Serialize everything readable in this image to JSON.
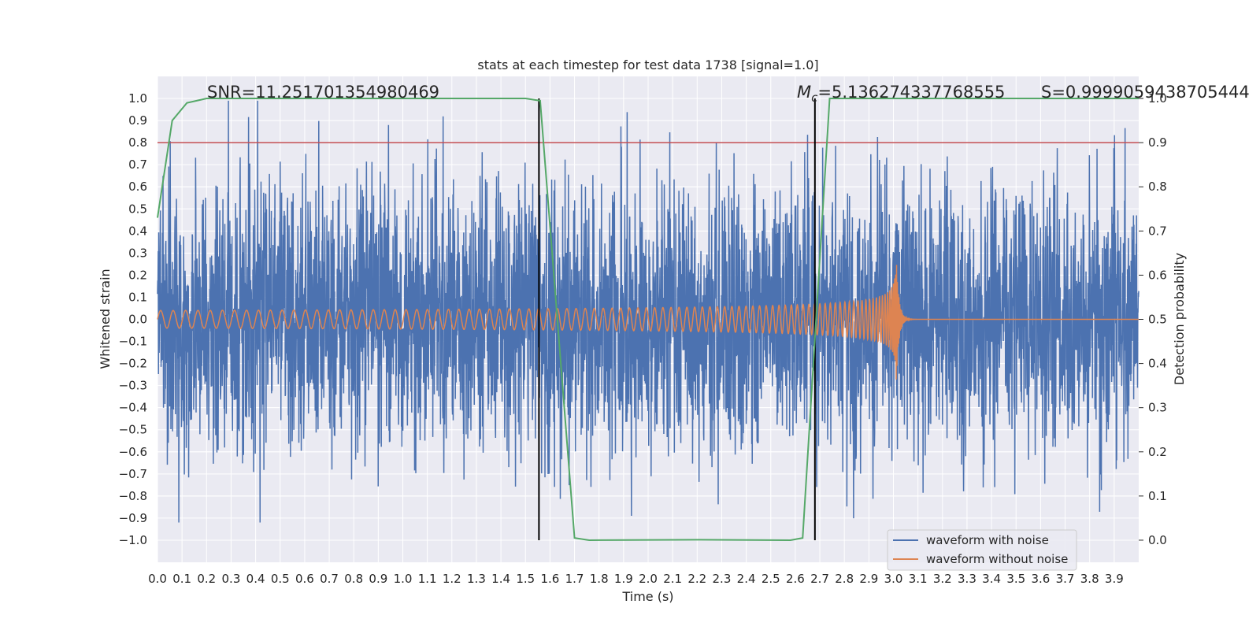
{
  "chart_data": {
    "type": "line",
    "title": "stats at each timestep for test data 1738 [signal=1.0]",
    "xlabel": "Time (s)",
    "ylabel": "Whitened strain",
    "y2label": "Detection probability",
    "xlim": [
      0.0,
      4.0
    ],
    "ylim": [
      -1.1,
      1.1
    ],
    "y2lim": [
      -0.05,
      1.05
    ],
    "xticks": [
      "0.0",
      "0.1",
      "0.2",
      "0.3",
      "0.4",
      "0.5",
      "0.6",
      "0.7",
      "0.8",
      "0.9",
      "1.0",
      "1.1",
      "1.2",
      "1.3",
      "1.4",
      "1.5",
      "1.6",
      "1.7",
      "1.8",
      "1.9",
      "2.0",
      "2.1",
      "2.2",
      "2.3",
      "2.4",
      "2.5",
      "2.6",
      "2.7",
      "2.8",
      "2.9",
      "3.0",
      "3.1",
      "3.2",
      "3.3",
      "3.4",
      "3.5",
      "3.6",
      "3.7",
      "3.8",
      "3.9"
    ],
    "yticks": [
      "1.0",
      "0.9",
      "0.8",
      "0.7",
      "0.6",
      "0.5",
      "0.4",
      "0.3",
      "0.2",
      "0.1",
      "0.0",
      "−0.1",
      "−0.2",
      "−0.3",
      "−0.4",
      "−0.5",
      "−0.6",
      "−0.7",
      "−0.8",
      "−0.9",
      "−1.0"
    ],
    "y2ticks": [
      "1.0",
      "0.9",
      "0.8",
      "0.7",
      "0.6",
      "0.5",
      "0.4",
      "0.3",
      "0.2",
      "0.1",
      "0.0"
    ],
    "grid": true,
    "legend": {
      "placement": "lower-right",
      "entries": [
        {
          "label": "waveform with noise",
          "color": "#4c72b0"
        },
        {
          "label": "waveform without noise",
          "color": "#dd8452"
        }
      ]
    },
    "annotations": {
      "snr": "SNR=11.251701354980469",
      "mc_symbol": "M",
      "mc_subscript": "c",
      "mc_value": "=5.136274337768555",
      "s": "S=0.9999059438705444"
    },
    "vertical_lines_x": [
      1.555,
      2.68
    ],
    "threshold": {
      "y": 0.8,
      "color": "#c44e52"
    },
    "noisy_waveform": {
      "color": "#4c72b0",
      "sample_count": 4096,
      "amplitude_envelope": [
        -0.92,
        0.99
      ],
      "note_values": "dense random noise spanning roughly -0.9 to 0.99 across 0.0-4.0 s"
    },
    "clean_waveform": {
      "color": "#dd8452",
      "type": "chirp",
      "start_amplitude": 0.04,
      "peak_amplitude": 0.32,
      "merger_time": 3.01
    },
    "detection_probability": {
      "color": "#55a868",
      "points": [
        [
          0.0,
          0.73
        ],
        [
          0.06,
          0.95
        ],
        [
          0.12,
          0.99
        ],
        [
          0.2,
          1.0
        ],
        [
          0.3,
          1.0
        ],
        [
          1.5,
          1.0
        ],
        [
          1.56,
          0.995
        ],
        [
          1.7,
          0.005
        ],
        [
          1.76,
          0.0
        ],
        [
          2.2,
          0.001
        ],
        [
          2.58,
          0.0
        ],
        [
          2.63,
          0.005
        ],
        [
          2.74,
          1.0
        ],
        [
          3.0,
          1.0
        ],
        [
          4.0,
          1.0
        ]
      ]
    }
  }
}
